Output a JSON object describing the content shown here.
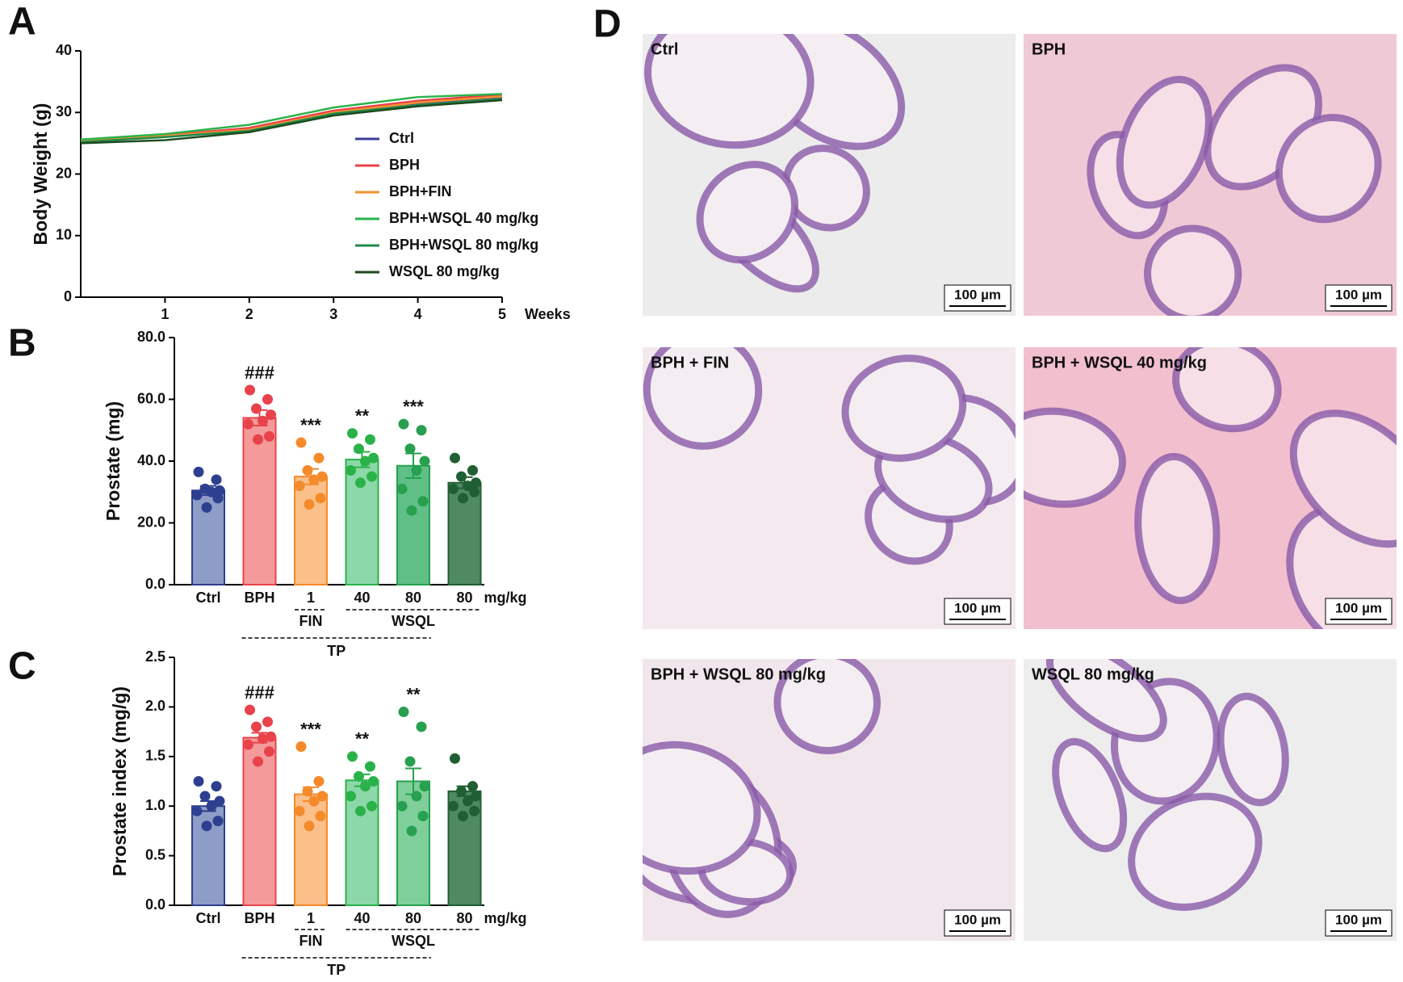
{
  "panel_labels": [
    "A",
    "B",
    "C",
    "D"
  ],
  "chart_data": [
    {
      "type": "line",
      "ylabel": "Body Weight (g)",
      "xlabel": "Weeks",
      "x": [
        0,
        1,
        2,
        3,
        4,
        5
      ],
      "xlim": [
        0,
        5
      ],
      "xticks": [
        1,
        2,
        3,
        4,
        5
      ],
      "ylim": [
        0,
        40
      ],
      "yticks": [
        0,
        10,
        20,
        30,
        40
      ],
      "series": [
        {
          "name": "Ctrl",
          "color": "#3b3f9a",
          "values": [
            25.3,
            26.2,
            27.3,
            30.0,
            31.5,
            32.5
          ]
        },
        {
          "name": "BPH",
          "color": "#e8424a",
          "values": [
            25.5,
            26.3,
            27.5,
            30.3,
            31.9,
            32.9
          ]
        },
        {
          "name": "BPH+FIN",
          "color": "#f4922f",
          "values": [
            25.4,
            26.2,
            27.2,
            30.0,
            31.6,
            32.6
          ]
        },
        {
          "name": "BPH+WSQL 40 mg/kg",
          "color": "#2ab24a",
          "values": [
            25.6,
            26.5,
            28.0,
            30.8,
            32.5,
            33.0
          ]
        },
        {
          "name": "BPH+WSQL 80 mg/kg",
          "color": "#1f8a4a",
          "values": [
            25.2,
            26.0,
            27.0,
            29.8,
            31.2,
            32.2
          ]
        },
        {
          "name": "WSQL 80 mg/kg",
          "color": "#1d4a1d",
          "values": [
            25.0,
            25.5,
            26.8,
            29.5,
            31.0,
            32.0
          ]
        }
      ]
    },
    {
      "type": "bar",
      "ylabel": "Prostate (mg)",
      "categories": [
        "Ctrl",
        "BPH",
        "1",
        "40",
        "80",
        "80"
      ],
      "unit": "mg/kg",
      "group_labels": [
        "FIN",
        "WSQL",
        "TP"
      ],
      "values": [
        30.5,
        54,
        35,
        40.5,
        38.5,
        33
      ],
      "errors": [
        1.5,
        2.5,
        2.5,
        2.5,
        4,
        1.8
      ],
      "annotations": [
        null,
        "###",
        "***",
        "**",
        "***",
        null
      ],
      "points": [
        [
          36.5,
          34,
          31,
          30.5,
          30,
          29,
          28,
          25
        ],
        [
          63,
          60,
          57,
          55,
          53,
          52,
          48,
          47
        ],
        [
          46,
          41,
          37,
          35,
          34,
          32,
          28,
          26
        ],
        [
          49,
          47,
          44,
          41,
          40,
          37,
          35,
          33
        ],
        [
          52,
          50,
          44,
          40,
          37,
          31,
          27,
          24
        ],
        [
          41,
          37,
          35,
          33,
          32,
          31,
          30,
          28
        ]
      ],
      "colors": [
        "#8e9cc8",
        "#f49a9a",
        "#fbbf8a",
        "#8dd8a8",
        "#5fbf86",
        "#4f8a62"
      ],
      "point_colors": [
        "#2e3f8f",
        "#e8424a",
        "#f58a2a",
        "#2ab24a",
        "#27a050",
        "#1f5f33"
      ],
      "ylim": [
        0,
        80
      ],
      "yticks": [
        {
          "value": 0,
          "label": "0.0"
        },
        {
          "value": 20,
          "label": "20.0"
        },
        {
          "value": 40,
          "label": "40.0"
        },
        {
          "value": 60,
          "label": "60.0"
        },
        {
          "value": 80,
          "label": "80.0"
        }
      ]
    },
    {
      "type": "bar",
      "ylabel": "Prostate index (mg/g)",
      "categories": [
        "Ctrl",
        "BPH",
        "1",
        "40",
        "80",
        "80"
      ],
      "unit": "mg/kg",
      "group_labels": [
        "FIN",
        "WSQL",
        "TP"
      ],
      "values": [
        1.0,
        1.69,
        1.12,
        1.26,
        1.25,
        1.15
      ],
      "errors": [
        0.05,
        0.05,
        0.07,
        0.06,
        0.13,
        0.05
      ],
      "annotations": [
        null,
        "###",
        "***",
        "**",
        "**",
        null
      ],
      "points": [
        [
          1.25,
          1.2,
          1.1,
          1.05,
          1.0,
          0.95,
          0.85,
          0.8
        ],
        [
          1.97,
          1.85,
          1.8,
          1.7,
          1.68,
          1.62,
          1.55,
          1.45
        ],
        [
          1.6,
          1.25,
          1.15,
          1.1,
          1.05,
          0.95,
          0.9,
          0.8
        ],
        [
          1.5,
          1.4,
          1.3,
          1.25,
          1.2,
          1.1,
          1.0,
          0.95
        ],
        [
          1.95,
          1.8,
          1.45,
          1.2,
          1.1,
          1.0,
          0.9,
          0.75
        ],
        [
          1.48,
          1.2,
          1.15,
          1.1,
          1.05,
          1.0,
          0.95,
          0.9
        ]
      ],
      "colors": [
        "#8e9cc8",
        "#f49a9a",
        "#fbbf8a",
        "#8dd8a8",
        "#7fcf9a",
        "#4f8a62"
      ],
      "point_colors": [
        "#2e3f8f",
        "#e8424a",
        "#f58a2a",
        "#2ab24a",
        "#27a050",
        "#1f5f33"
      ],
      "ylim": [
        0,
        2.5
      ],
      "yticks": [
        {
          "value": 0,
          "label": "0.0"
        },
        {
          "value": 0.5,
          "label": "0.5"
        },
        {
          "value": 1,
          "label": "1.0"
        },
        {
          "value": 1.5,
          "label": "1.5"
        },
        {
          "value": 2,
          "label": "2.0"
        },
        {
          "value": 2.5,
          "label": "2.5"
        }
      ]
    }
  ],
  "histology": {
    "panels": [
      {
        "label": "Ctrl",
        "scale_bar": "100 µm"
      },
      {
        "label": "BPH",
        "scale_bar": "100 µm"
      },
      {
        "label": "BPH + FIN",
        "scale_bar": "100 µm"
      },
      {
        "label": "BPH + WSQL 40 mg/kg",
        "scale_bar": "100 µm"
      },
      {
        "label": "BPH + WSQL 80 mg/kg",
        "scale_bar": "100 µm"
      },
      {
        "label": "WSQL 80 mg/kg",
        "scale_bar": "100 µm"
      }
    ]
  }
}
